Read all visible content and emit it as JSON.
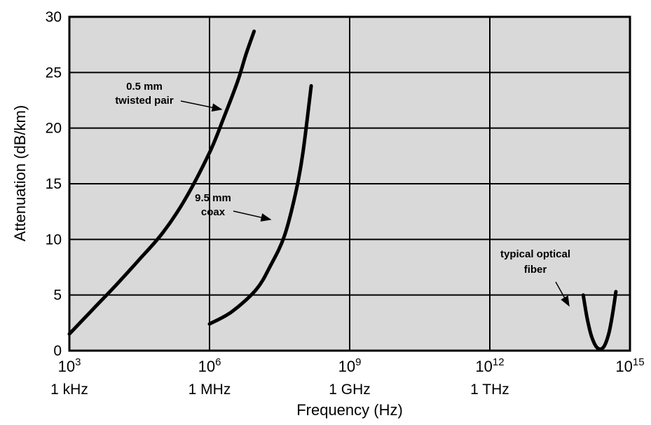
{
  "chart_data": {
    "type": "line",
    "xlabel": "Frequency (Hz)",
    "ylabel": "Attenuation (dB/km)",
    "x_scale": "log10",
    "xlim": [
      1000,
      1000000000000000
    ],
    "ylim": [
      0,
      30
    ],
    "grid": true,
    "background": "#d9d9d9",
    "yticks": [
      "0",
      "5",
      "10",
      "15",
      "20",
      "25",
      "30"
    ],
    "xticks": [
      {
        "exponent_label": "10",
        "sup": "3",
        "unit_label": "1 kHz"
      },
      {
        "exponent_label": "10",
        "sup": "6",
        "unit_label": "1 MHz"
      },
      {
        "exponent_label": "10",
        "sup": "9",
        "unit_label": "1 GHz"
      },
      {
        "exponent_label": "10",
        "sup": "12",
        "unit_label": "1 THz"
      },
      {
        "exponent_label": "10",
        "sup": "15",
        "unit_label": ""
      }
    ],
    "series": [
      {
        "name": "0.5 mm twisted pair",
        "x": [
          1000,
          3000,
          10000,
          30000,
          100000,
          300000,
          1000000,
          2000000,
          4000000,
          6000000,
          9000000
        ],
        "y": [
          1.5,
          3.6,
          5.9,
          8.1,
          10.6,
          13.6,
          17.8,
          20.9,
          24.2,
          26.6,
          28.7
        ]
      },
      {
        "name": "9.5 mm coax",
        "x": [
          1000000,
          3000000,
          10000000,
          20000000,
          40000000,
          70000000,
          100000000,
          150000000
        ],
        "y": [
          2.4,
          3.5,
          5.5,
          7.6,
          10.3,
          14.2,
          17.8,
          23.8
        ]
      },
      {
        "name": "typical optical fiber",
        "x": [
          100000000000000,
          120000000000000,
          150000000000000,
          200000000000000,
          270000000000000,
          350000000000000,
          420000000000000,
          500000000000000
        ],
        "y": [
          5.0,
          3.0,
          1.3,
          0.25,
          0.3,
          1.5,
          3.2,
          5.3
        ]
      }
    ],
    "annotations": [
      {
        "lines": [
          "0.5 mm",
          "twisted pair"
        ],
        "series": 0
      },
      {
        "lines": [
          "9.5 mm",
          "coax"
        ],
        "series": 1
      },
      {
        "lines": [
          "typical optical",
          "fiber"
        ],
        "series": 2
      }
    ]
  }
}
